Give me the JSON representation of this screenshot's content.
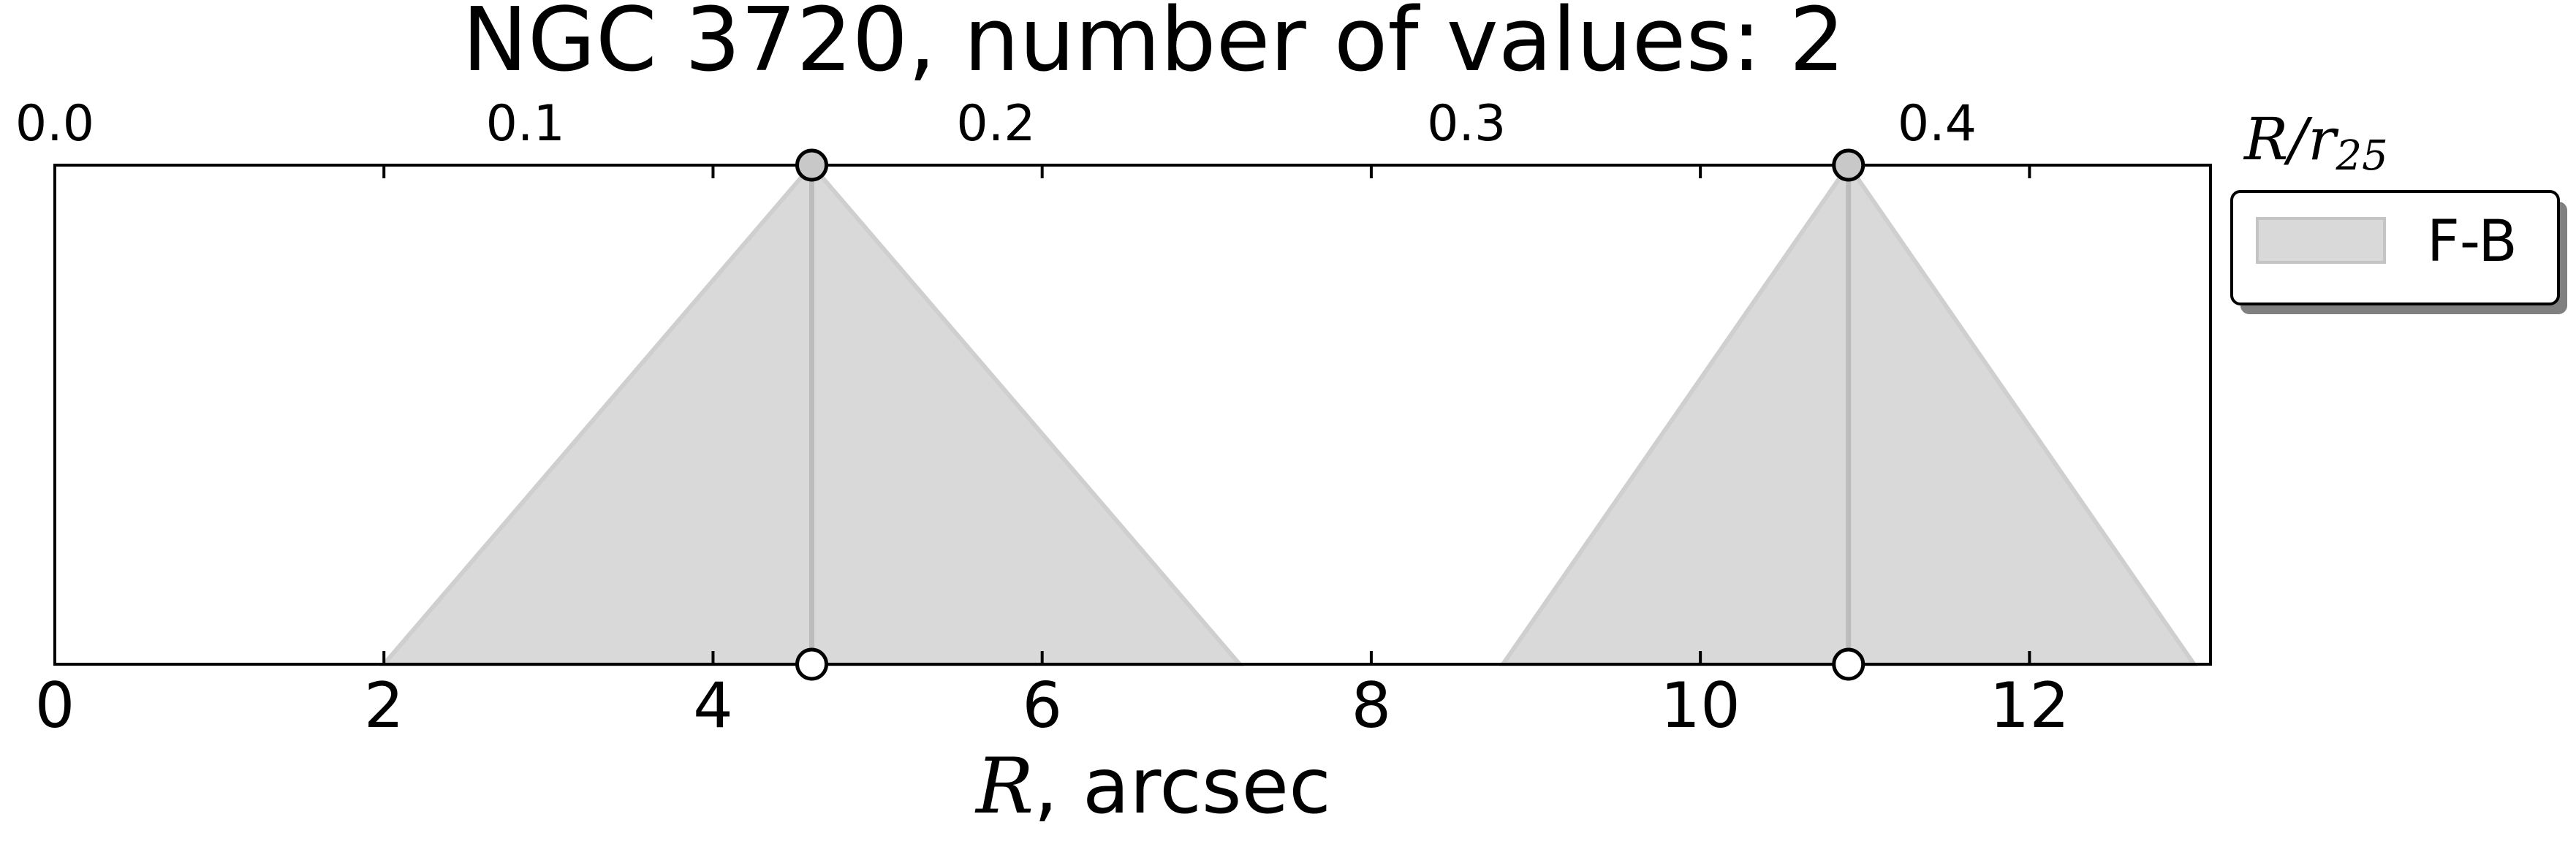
{
  "chart_data": {
    "type": "area",
    "title": "NGC 3720, number of values: 2",
    "xlabel_symbol": "R",
    "xlabel_unit": ", arcsec",
    "top_axis_label": "R/r",
    "top_axis_label_sub": "25",
    "xlim": [
      0,
      13.1
    ],
    "xticks": [
      "0",
      "2",
      "4",
      "6",
      "8",
      "10",
      "12"
    ],
    "top_xticks": [
      "0.0",
      "0.1",
      "0.2",
      "0.3",
      "0.4"
    ],
    "top_scale_per_unit": 0.03497,
    "legend_position": "outside-top-right",
    "grid": false,
    "colors": {
      "fill": "#d9d9d9",
      "line": "#bcbcbc",
      "marker": "#c8c8c8",
      "frame": "#000000"
    },
    "series": [
      {
        "name": "F-B",
        "points": [
          {
            "center": 4.6,
            "left": 2.0,
            "right": 7.2
          },
          {
            "center": 10.9,
            "left": 8.8,
            "right": 13.0
          }
        ]
      }
    ]
  }
}
